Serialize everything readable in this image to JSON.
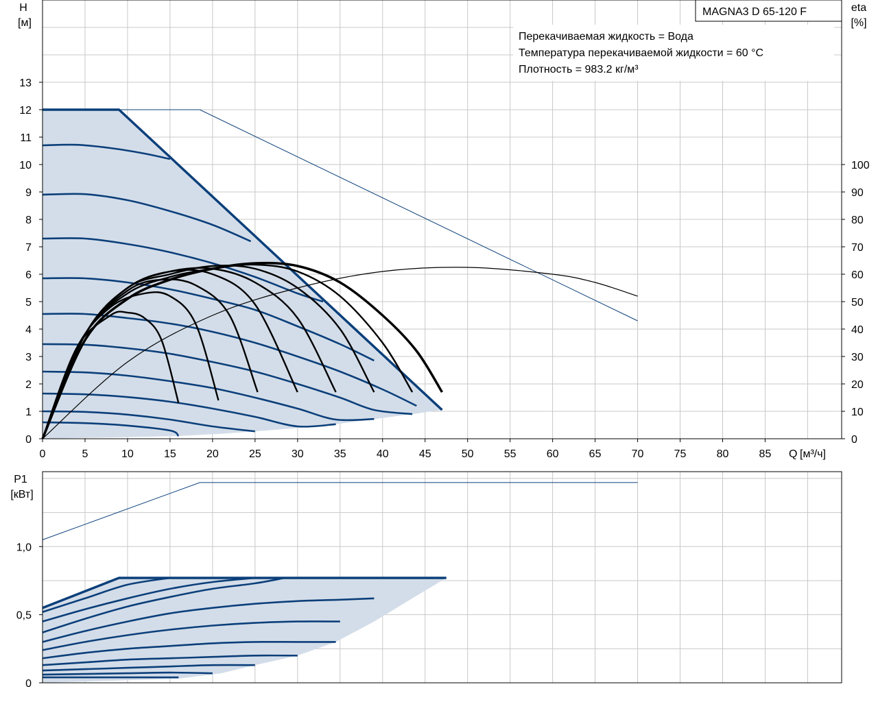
{
  "chart_data": [
    {
      "type": "line",
      "panel": "head-and-efficiency",
      "title": "MAGNA3 D 65-120 F",
      "ylabel": "H",
      "yunit": "[м]",
      "y2label": "eta",
      "y2unit": "[%]",
      "xlabel": "Q",
      "xunit": "[м³/ч]",
      "xlim": [
        0,
        94
      ],
      "ylim": [
        0,
        16
      ],
      "y2lim": [
        0,
        100
      ],
      "xticks": [
        "0",
        "5",
        "10",
        "15",
        "20",
        "25",
        "30",
        "35",
        "40",
        "45",
        "50",
        "55",
        "60",
        "65",
        "70",
        "75",
        "80",
        "85"
      ],
      "yticks": [
        "0",
        "1",
        "2",
        "3",
        "4",
        "5",
        "6",
        "7",
        "8",
        "9",
        "10",
        "11",
        "12",
        "13"
      ],
      "y2ticks": [
        "0",
        "10",
        "20",
        "30",
        "40",
        "50",
        "60",
        "70",
        "80",
        "90",
        "100"
      ],
      "grid": true,
      "info": [
        "Перекачиваемая жидкость = Вода",
        "Температура перекачиваемой жидкости = 60 °C",
        "Плотность = 983.2 кг/м³"
      ],
      "operating_area_head": [
        [
          0,
          12
        ],
        [
          9,
          12
        ],
        [
          15,
          10.2
        ],
        [
          20,
          8.8
        ],
        [
          25,
          7.4
        ],
        [
          30,
          6.0
        ],
        [
          35,
          4.5
        ],
        [
          40,
          3.0
        ],
        [
          47,
          1.05
        ],
        [
          43.5,
          0.9
        ],
        [
          39,
          0.72
        ],
        [
          34.5,
          0.53
        ],
        [
          30,
          0.39
        ],
        [
          25,
          0.27
        ],
        [
          21,
          0.18
        ],
        [
          16,
          0.1
        ],
        [
          0,
          0
        ]
      ],
      "speed_curves_head": [
        {
          "h0": 12.0,
          "points": [
            [
              0,
              12
            ],
            [
              9,
              12
            ],
            [
              47,
              1.05
            ]
          ],
          "weight": "max"
        },
        {
          "h0": 10.7,
          "points": [
            [
              0,
              10.7
            ],
            [
              4,
              10.72
            ],
            [
              8,
              10.6
            ],
            [
              12,
              10.4
            ],
            [
              15,
              10.2
            ]
          ]
        },
        {
          "h0": 8.9,
          "points": [
            [
              0,
              8.9
            ],
            [
              5,
              8.92
            ],
            [
              10,
              8.7
            ],
            [
              15,
              8.3
            ],
            [
              20,
              7.8
            ],
            [
              24.5,
              7.2
            ]
          ]
        },
        {
          "h0": 7.3,
          "points": [
            [
              0,
              7.3
            ],
            [
              5,
              7.3
            ],
            [
              10,
              7.1
            ],
            [
              15,
              6.8
            ],
            [
              20,
              6.4
            ],
            [
              25,
              5.9
            ],
            [
              30,
              5.3
            ],
            [
              33,
              5.0
            ]
          ]
        },
        {
          "h0": 5.85,
          "points": [
            [
              0,
              5.85
            ],
            [
              5,
              5.85
            ],
            [
              10,
              5.7
            ],
            [
              15,
              5.45
            ],
            [
              20,
              5.1
            ],
            [
              25,
              4.7
            ],
            [
              30,
              4.1
            ],
            [
              35,
              3.45
            ],
            [
              39,
              2.85
            ]
          ]
        },
        {
          "h0": 4.55,
          "points": [
            [
              0,
              4.55
            ],
            [
              5,
              4.55
            ],
            [
              10,
              4.4
            ],
            [
              15,
              4.2
            ],
            [
              20,
              3.9
            ],
            [
              25,
              3.5
            ],
            [
              30,
              3.0
            ],
            [
              35,
              2.45
            ],
            [
              40,
              1.8
            ],
            [
              44,
              1.2
            ]
          ]
        },
        {
          "h0": 3.45,
          "points": [
            [
              0,
              3.45
            ],
            [
              5,
              3.43
            ],
            [
              10,
              3.3
            ],
            [
              15,
              3.1
            ],
            [
              20,
              2.8
            ],
            [
              25,
              2.45
            ],
            [
              30,
              2.0
            ],
            [
              35,
              1.5
            ],
            [
              39,
              1.05
            ],
            [
              43.5,
              0.9
            ]
          ]
        },
        {
          "h0": 2.45,
          "points": [
            [
              0,
              2.45
            ],
            [
              5,
              2.42
            ],
            [
              10,
              2.3
            ],
            [
              15,
              2.1
            ],
            [
              20,
              1.85
            ],
            [
              25,
              1.5
            ],
            [
              30,
              1.1
            ],
            [
              34.5,
              0.7
            ],
            [
              39,
              0.72
            ]
          ]
        },
        {
          "h0": 1.65,
          "points": [
            [
              0,
              1.65
            ],
            [
              5,
              1.62
            ],
            [
              10,
              1.52
            ],
            [
              15,
              1.35
            ],
            [
              20,
              1.1
            ],
            [
              25,
              0.8
            ],
            [
              30,
              0.45
            ],
            [
              34.5,
              0.53
            ]
          ]
        },
        {
          "h0": 1.0,
          "points": [
            [
              0,
              1.0
            ],
            [
              5,
              0.98
            ],
            [
              10,
              0.88
            ],
            [
              15,
              0.7
            ],
            [
              20,
              0.45
            ],
            [
              25,
              0.27
            ]
          ]
        },
        {
          "h0": 0.6,
          "points": [
            [
              0,
              0.6
            ],
            [
              5,
              0.57
            ],
            [
              10,
              0.48
            ],
            [
              15,
              0.3
            ],
            [
              16,
              0.1
            ]
          ]
        }
      ],
      "max_curve_single_head": [
        [
          0,
          12
        ],
        [
          18.5,
          12
        ],
        [
          70,
          4.3
        ]
      ],
      "efficiency_curves": [
        {
          "points": [
            [
              0,
              0
            ],
            [
              4,
              33
            ],
            [
              8,
              45
            ],
            [
              10,
              46
            ],
            [
              12,
              44
            ],
            [
              14,
              36
            ],
            [
              16,
              13
            ]
          ]
        },
        {
          "points": [
            [
              0,
              0
            ],
            [
              4,
              33
            ],
            [
              8,
              48
            ],
            [
              12,
              53
            ],
            [
              15,
              52
            ],
            [
              18,
              42
            ],
            [
              20.7,
              14
            ]
          ]
        },
        {
          "points": [
            [
              0,
              0
            ],
            [
              5,
              38
            ],
            [
              10,
              54
            ],
            [
              14,
              58
            ],
            [
              18,
              56
            ],
            [
              22,
              45
            ],
            [
              25.3,
              17
            ]
          ]
        },
        {
          "points": [
            [
              0,
              0
            ],
            [
              5,
              38
            ],
            [
              10,
              55
            ],
            [
              15,
              61
            ],
            [
              20,
              60
            ],
            [
              25,
              49
            ],
            [
              30,
              17
            ]
          ]
        },
        {
          "points": [
            [
              0,
              0
            ],
            [
              5,
              38
            ],
            [
              10,
              55
            ],
            [
              15,
              61
            ],
            [
              20,
              62
            ],
            [
              25,
              57
            ],
            [
              30,
              44
            ],
            [
              34.5,
              17
            ]
          ]
        },
        {
          "points": [
            [
              0,
              0
            ],
            [
              5,
              38
            ],
            [
              10,
              55
            ],
            [
              15,
              60
            ],
            [
              20,
              63
            ],
            [
              25,
              62
            ],
            [
              30,
              55
            ],
            [
              35,
              40
            ],
            [
              39,
              17
            ]
          ]
        },
        {
          "points": [
            [
              0,
              0
            ],
            [
              5,
              38
            ],
            [
              10,
              53
            ],
            [
              15,
              59
            ],
            [
              20,
              62
            ],
            [
              25,
              63.5
            ],
            [
              30,
              61
            ],
            [
              35,
              52
            ],
            [
              40,
              35
            ],
            [
              43.5,
              17
            ]
          ]
        },
        {
          "points": [
            [
              0,
              0
            ],
            [
              5,
              36
            ],
            [
              10,
              51
            ],
            [
              15,
              58
            ],
            [
              20,
              62
            ],
            [
              25,
              64
            ],
            [
              30,
              63
            ],
            [
              35,
              57
            ],
            [
              40,
              45
            ],
            [
              44,
              32
            ],
            [
              47,
              17
            ]
          ],
          "weight": "max"
        }
      ],
      "efficiency_single": [
        [
          0,
          0
        ],
        [
          10,
          28
        ],
        [
          20,
          45
        ],
        [
          30,
          55
        ],
        [
          40,
          61
        ],
        [
          50,
          62.5
        ],
        [
          60,
          60
        ],
        [
          65,
          57
        ],
        [
          70,
          52
        ]
      ]
    },
    {
      "type": "line",
      "panel": "power",
      "ylabel": "P1",
      "yunit": "[кВт]",
      "xlim": [
        0,
        94
      ],
      "ylim": [
        0,
        1.55
      ],
      "yticks": [
        "0",
        "0,5",
        "1,0"
      ],
      "grid": true,
      "operating_area_power": [
        [
          0,
          0.55
        ],
        [
          9,
          0.77
        ],
        [
          47.5,
          0.77
        ],
        [
          43.5,
          0.62
        ],
        [
          39,
          0.45
        ],
        [
          34.5,
          0.3
        ],
        [
          30,
          0.2
        ],
        [
          25,
          0.13
        ],
        [
          21,
          0.07
        ],
        [
          16,
          0.03
        ],
        [
          0,
          0
        ]
      ],
      "speed_curves_power": [
        {
          "points": [
            [
              0,
              0.55
            ],
            [
              9,
              0.77
            ],
            [
              47.5,
              0.77
            ]
          ],
          "weight": "max"
        },
        {
          "points": [
            [
              0,
              0.52
            ],
            [
              5,
              0.62
            ],
            [
              10,
              0.72
            ],
            [
              15,
              0.77
            ]
          ]
        },
        {
          "points": [
            [
              0,
              0.45
            ],
            [
              5,
              0.54
            ],
            [
              10,
              0.62
            ],
            [
              15,
              0.69
            ],
            [
              20,
              0.74
            ],
            [
              25,
              0.77
            ]
          ]
        },
        {
          "points": [
            [
              0,
              0.37
            ],
            [
              5,
              0.47
            ],
            [
              10,
              0.56
            ],
            [
              15,
              0.63
            ],
            [
              20,
              0.69
            ],
            [
              25,
              0.73
            ],
            [
              28.5,
              0.77
            ]
          ]
        },
        {
          "points": [
            [
              0,
              0.3
            ],
            [
              5,
              0.38
            ],
            [
              10,
              0.45
            ],
            [
              15,
              0.51
            ],
            [
              20,
              0.55
            ],
            [
              25,
              0.58
            ],
            [
              30,
              0.6
            ],
            [
              35,
              0.61
            ],
            [
              39,
              0.62
            ]
          ]
        },
        {
          "points": [
            [
              0,
              0.24
            ],
            [
              5,
              0.3
            ],
            [
              10,
              0.35
            ],
            [
              15,
              0.39
            ],
            [
              20,
              0.42
            ],
            [
              25,
              0.44
            ],
            [
              30,
              0.45
            ],
            [
              35,
              0.45
            ]
          ]
        },
        {
          "points": [
            [
              0,
              0.18
            ],
            [
              5,
              0.22
            ],
            [
              10,
              0.25
            ],
            [
              15,
              0.27
            ],
            [
              20,
              0.29
            ],
            [
              25,
              0.3
            ],
            [
              30,
              0.3
            ],
            [
              34.5,
              0.3
            ]
          ]
        },
        {
          "points": [
            [
              0,
              0.13
            ],
            [
              5,
              0.15
            ],
            [
              10,
              0.17
            ],
            [
              15,
              0.18
            ],
            [
              20,
              0.19
            ],
            [
              25,
              0.2
            ],
            [
              30,
              0.2
            ]
          ]
        },
        {
          "points": [
            [
              0,
              0.09
            ],
            [
              5,
              0.1
            ],
            [
              10,
              0.11
            ],
            [
              15,
              0.12
            ],
            [
              20,
              0.13
            ],
            [
              25,
              0.13
            ]
          ]
        },
        {
          "points": [
            [
              0,
              0.06
            ],
            [
              5,
              0.065
            ],
            [
              10,
              0.07
            ],
            [
              15,
              0.075
            ],
            [
              20,
              0.07
            ]
          ]
        },
        {
          "points": [
            [
              0,
              0.04
            ],
            [
              5,
              0.04
            ],
            [
              10,
              0.04
            ],
            [
              16,
              0.04
            ]
          ]
        }
      ],
      "max_curve_single_power": [
        [
          0,
          1.05
        ],
        [
          18.5,
          1.47
        ],
        [
          70,
          1.47
        ]
      ]
    }
  ],
  "colors": {
    "curve": "#0b3f7a",
    "area": "#d3dde9",
    "efficiency": "#000000",
    "grid": "#c8c8c8"
  }
}
